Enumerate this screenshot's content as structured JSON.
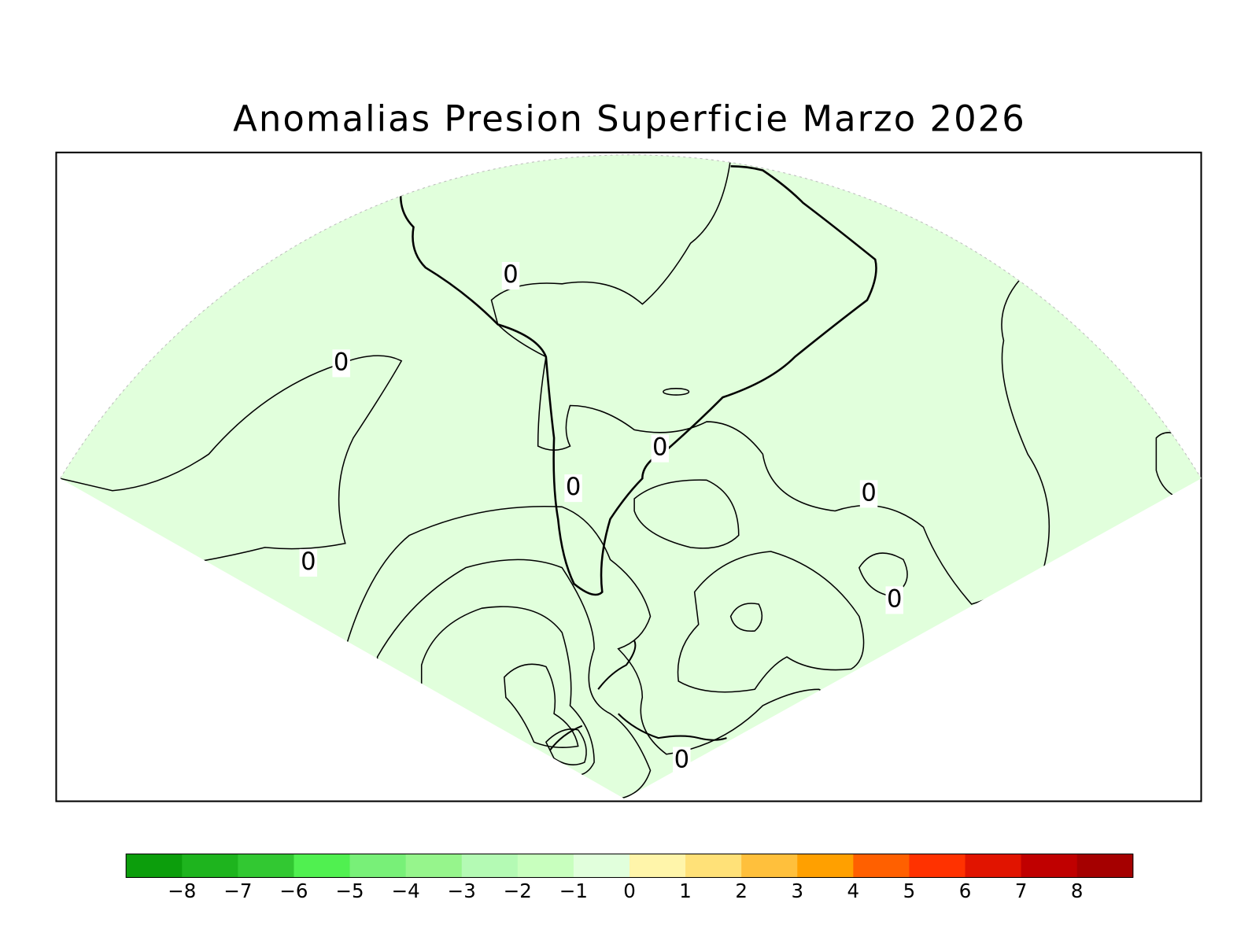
{
  "title": "Anomalias Presion Superficie Marzo 2026",
  "colorbar": {
    "colors": [
      "#0c9e0c",
      "#1eb41e",
      "#32c832",
      "#50f050",
      "#78f078",
      "#96f58c",
      "#b4fab4",
      "#c8ffbe",
      "#e1ffdc",
      "#fff5aa",
      "#ffe178",
      "#ffc03c",
      "#ffa000",
      "#ff6000",
      "#ff3200",
      "#e11400",
      "#c00000",
      "#a50000"
    ],
    "levels": [
      {
        "value": -8,
        "label": "−8"
      },
      {
        "value": -7,
        "label": "−7"
      },
      {
        "value": -6,
        "label": "−6"
      },
      {
        "value": -5,
        "label": "−5"
      },
      {
        "value": -4,
        "label": "−4"
      },
      {
        "value": -3,
        "label": "−3"
      },
      {
        "value": -2,
        "label": "−2"
      },
      {
        "value": -1,
        "label": "−1"
      },
      0,
      1,
      2,
      3,
      4,
      5,
      6,
      7,
      8
    ]
  },
  "contour_labels": [
    "0",
    "0",
    "0",
    "0",
    "0",
    "0",
    "0",
    "0"
  ]
}
